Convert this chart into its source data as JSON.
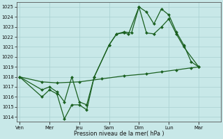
{
  "background_color": "#c8e8e8",
  "grid_color": "#a8d0d0",
  "line_color": "#1a6020",
  "ylim": [
    1013.5,
    1025.5
  ],
  "yticks": [
    1014,
    1015,
    1016,
    1017,
    1018,
    1019,
    1020,
    1021,
    1022,
    1023,
    1024,
    1025
  ],
  "xlabel": "Pression niveau de la mer( hPa )",
  "x_labels": [
    "Ven",
    "Mer",
    "Jeu",
    "Sam",
    "Dim",
    "Lun",
    "Mar"
  ],
  "x_positions": [
    0,
    2,
    4,
    6,
    8,
    10,
    12
  ],
  "xlim": [
    -0.2,
    13.5
  ],
  "line1_x": [
    0,
    1.5,
    2.0,
    2.5,
    3.0,
    3.5,
    4.0,
    4.5,
    5.0,
    6.0,
    6.5,
    7.0,
    7.3,
    8.0,
    8.5,
    9.0,
    9.5,
    10.0,
    10.5,
    11.0,
    12.0
  ],
  "line1_y": [
    1018,
    1016.0,
    1016.7,
    1016.3,
    1013.8,
    1015.2,
    1015.2,
    1014.7,
    1018.0,
    1021.2,
    1022.3,
    1022.4,
    1022.3,
    1025.0,
    1022.4,
    1022.3,
    1023.0,
    1023.8,
    1022.3,
    1021.0,
    1019.0
  ],
  "line2_x": [
    0,
    1.5,
    2.0,
    2.5,
    3.0,
    3.5,
    4.0,
    4.5,
    5.0,
    6.0,
    6.5,
    7.0,
    7.5,
    8.0,
    8.5,
    9.0,
    9.5,
    10.0,
    10.5,
    11.0,
    11.5,
    12.0
  ],
  "line2_y": [
    1018,
    1016.7,
    1017.0,
    1016.5,
    1015.5,
    1018.0,
    1015.5,
    1015.2,
    1018.0,
    1021.2,
    1022.3,
    1022.5,
    1022.4,
    1025.0,
    1024.5,
    1023.3,
    1024.8,
    1024.2,
    1022.5,
    1021.2,
    1019.5,
    1019.0
  ],
  "line3_x": [
    0,
    1.5,
    2.5,
    4.0,
    5.5,
    7.0,
    8.5,
    9.5,
    10.5,
    11.5,
    12.0
  ],
  "line3_y": [
    1018,
    1017.5,
    1017.4,
    1017.5,
    1017.8,
    1018.1,
    1018.3,
    1018.5,
    1018.7,
    1018.9,
    1019.0
  ]
}
